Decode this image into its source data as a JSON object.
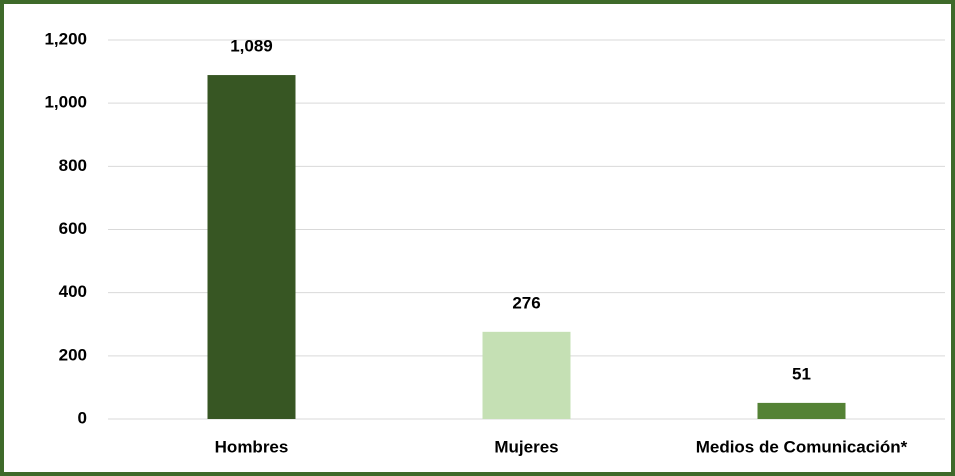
{
  "chart_data": {
    "type": "bar",
    "categories": [
      "Hombres",
      "Mujeres",
      "Medios de Comunicación*"
    ],
    "values": [
      1089,
      276,
      51
    ],
    "value_labels": [
      "1,089",
      "276",
      "51"
    ],
    "colors": [
      "#375623",
      "#c5e0b4",
      "#548235"
    ],
    "ylim": [
      0,
      1200
    ],
    "yticks": [
      0,
      200,
      400,
      600,
      800,
      {
        "value": 1000,
        "label": "1,000"
      },
      {
        "value": 1200,
        "label": "1,200"
      }
    ],
    "grid": true
  }
}
